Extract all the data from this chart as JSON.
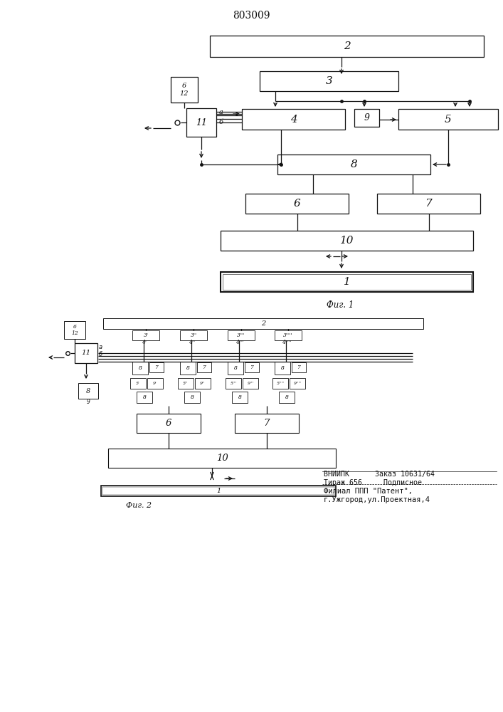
{
  "title": "803009",
  "fig1_label": "Фиг. 1",
  "fig2_label": "Фиг. 2",
  "bt1": "ВНИИПК      Заказ 10631/64",
  "bt2": "Тираж 656     Подписное",
  "bt3": "Филиал ППП \"Патент\",",
  "bt4": "г.Ужгород,ул.Проектная,4",
  "bg": "#ffffff",
  "fc": "#111111"
}
